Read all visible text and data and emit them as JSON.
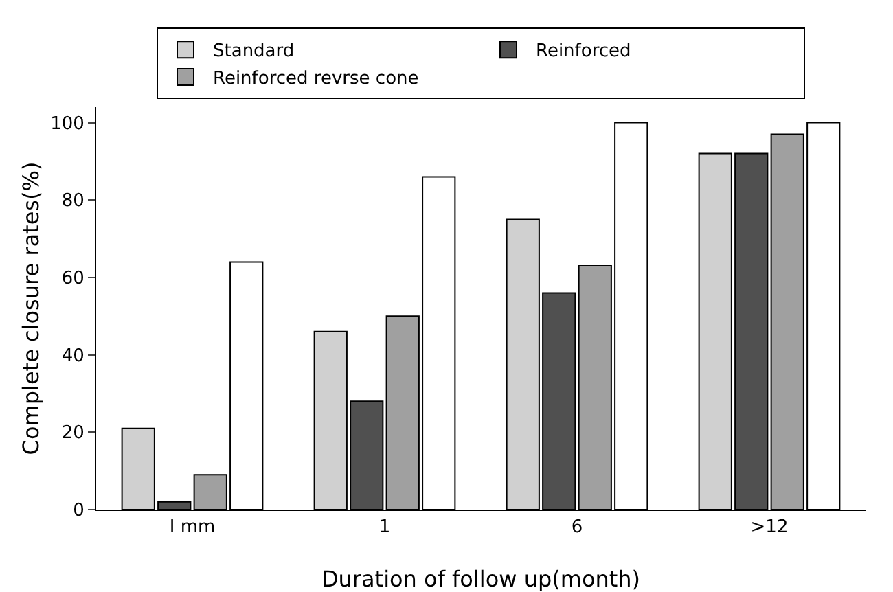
{
  "chart_data": {
    "type": "bar",
    "xlabel": "Duration of follow up(month)",
    "ylabel": "Complete closure rates(%)",
    "categories": [
      "I mm",
      "1",
      "6",
      ">12"
    ],
    "series": [
      {
        "name": "Standard",
        "color": "#d0d0d0",
        "values": [
          21,
          46,
          75,
          92
        ]
      },
      {
        "name": "Reinforced",
        "color": "#505050",
        "values": [
          2,
          28,
          56,
          92
        ]
      },
      {
        "name": "Reinforced revrse cone",
        "color": "#a0a0a0",
        "values": [
          9,
          50,
          63,
          97
        ]
      },
      {
        "color": "#ffffff",
        "values": [
          64,
          86,
          100,
          100
        ]
      }
    ],
    "ylim": [
      0,
      104
    ],
    "yticks": [
      0,
      20,
      40,
      60,
      80,
      100
    ],
    "grid": false,
    "legend": "top"
  }
}
